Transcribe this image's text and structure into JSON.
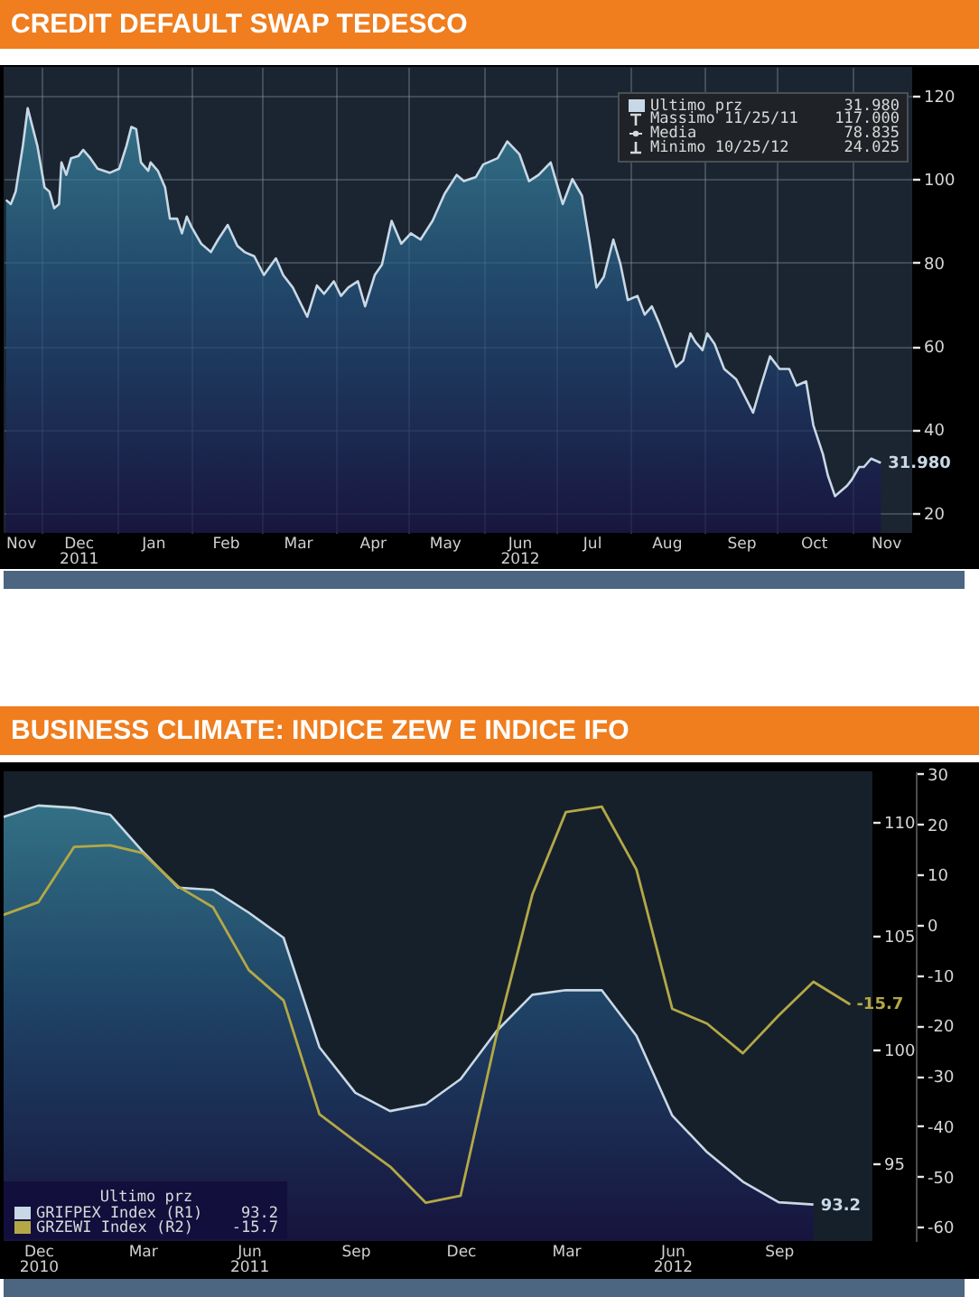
{
  "chart_data": [
    {
      "type": "area",
      "title": "CREDIT DEFAULT SWAP TEDESCO",
      "x": [
        "2011-11-16",
        "2011-11-18",
        "2011-11-20",
        "2011-11-23",
        "2011-11-25",
        "2011-11-29",
        "2011-12-02",
        "2011-12-04",
        "2011-12-06",
        "2011-12-08",
        "2011-12-09",
        "2011-12-11",
        "2011-12-13",
        "2011-12-16",
        "2011-12-18",
        "2011-12-21",
        "2011-12-24",
        "2011-12-29",
        "2012-01-02",
        "2012-01-05",
        "2012-01-07",
        "2012-01-09",
        "2012-01-11",
        "2012-01-14",
        "2012-01-15",
        "2012-01-18",
        "2012-01-21",
        "2012-01-23",
        "2012-01-26",
        "2012-01-28",
        "2012-01-30",
        "2012-02-01",
        "2012-02-05",
        "2012-02-09",
        "2012-02-12",
        "2012-02-16",
        "2012-02-20",
        "2012-02-23",
        "2012-02-27",
        "2012-03-02",
        "2012-03-07",
        "2012-03-10",
        "2012-03-14",
        "2012-03-20",
        "2012-03-24",
        "2012-03-27",
        "2012-03-31",
        "2012-04-03",
        "2012-04-06",
        "2012-04-10",
        "2012-04-13",
        "2012-04-17",
        "2012-04-20",
        "2012-04-24",
        "2012-04-28",
        "2012-05-02",
        "2012-05-06",
        "2012-05-11",
        "2012-05-16",
        "2012-05-21",
        "2012-05-24",
        "2012-05-29",
        "2012-06-01",
        "2012-06-07",
        "2012-06-11",
        "2012-06-16",
        "2012-06-20",
        "2012-06-24",
        "2012-06-29",
        "2012-07-04",
        "2012-07-08",
        "2012-07-12",
        "2012-07-15",
        "2012-07-18",
        "2012-07-21",
        "2012-07-25",
        "2012-07-28",
        "2012-07-31",
        "2012-08-04",
        "2012-08-07",
        "2012-08-10",
        "2012-08-13",
        "2012-08-16",
        "2012-08-20",
        "2012-08-23",
        "2012-08-26",
        "2012-08-28",
        "2012-08-31",
        "2012-09-02",
        "2012-09-05",
        "2012-09-09",
        "2012-09-14",
        "2012-09-21",
        "2012-09-24",
        "2012-09-28",
        "2012-10-02",
        "2012-10-06",
        "2012-10-09",
        "2012-10-13",
        "2012-10-16",
        "2012-10-20",
        "2012-10-22",
        "2012-10-25",
        "2012-10-30",
        "2012-11-01",
        "2012-11-04",
        "2012-11-06",
        "2012-11-09",
        "2012-11-13"
      ],
      "series": [
        {
          "name": "Ultimo prz",
          "color": "#c8d8e6",
          "values": [
            95,
            94,
            97,
            108,
            117,
            108,
            98,
            97,
            93,
            94,
            104,
            101,
            105,
            105.5,
            107,
            105,
            102.5,
            101.5,
            102.5,
            108,
            112.5,
            112,
            104,
            102,
            104,
            102,
            98,
            90.5,
            90.5,
            87,
            91,
            88.5,
            84.5,
            82.5,
            85.5,
            89,
            84,
            82.5,
            81.5,
            77,
            81,
            77,
            74,
            67,
            74.5,
            72.5,
            75.5,
            72,
            74,
            75.5,
            69.5,
            77,
            79.5,
            90,
            84.5,
            87,
            85.5,
            90,
            96.5,
            101,
            99.5,
            100.5,
            103.5,
            105,
            109,
            106,
            99.5,
            101,
            104,
            94,
            100,
            96,
            85.5,
            74,
            76.5,
            85.5,
            79.5,
            71,
            72,
            67.5,
            69.5,
            65.5,
            61,
            55,
            56.5,
            63,
            61,
            59,
            63,
            60.5,
            54.5,
            52,
            44,
            50,
            57.5,
            54.5,
            54.5,
            50.5,
            51.5,
            41,
            34,
            29,
            24,
            26.5,
            28,
            31,
            31,
            33,
            31.98
          ],
          "value_labels": [
            null,
            null,
            null,
            null,
            null,
            null,
            null,
            null,
            null,
            null,
            null,
            null,
            null,
            null,
            null,
            null,
            null,
            null,
            null,
            null,
            null,
            null,
            null,
            null,
            null,
            null,
            null,
            null,
            null,
            null,
            null,
            null,
            null,
            null,
            null,
            null,
            null,
            null,
            null,
            null,
            null,
            null,
            null,
            null,
            null,
            null,
            null,
            null,
            null,
            null,
            null,
            null,
            null,
            null,
            null,
            null,
            null,
            null,
            null,
            null,
            null,
            null,
            null,
            null,
            null,
            null,
            null,
            null,
            null,
            null,
            null,
            null,
            null,
            null,
            null,
            null,
            null,
            null,
            null,
            null,
            null,
            null,
            null,
            null,
            null,
            null,
            null,
            null,
            null,
            null,
            null,
            null,
            null,
            null,
            null,
            null,
            null,
            null,
            null,
            null,
            null,
            null,
            null,
            null,
            null,
            null,
            null,
            null,
            "31.980"
          ]
        }
      ],
      "xlim": [
        "2011-11-15",
        "2012-11-26"
      ],
      "xticks": [
        {
          "value": "2011-11-22",
          "label": "Nov"
        },
        {
          "value": "2011-12-16",
          "label": "Dec\n2011"
        },
        {
          "value": "2012-01-16",
          "label": "Jan"
        },
        {
          "value": "2012-02-15",
          "label": "Feb"
        },
        {
          "value": "2012-03-16",
          "label": "Mar"
        },
        {
          "value": "2012-04-16",
          "label": "Apr"
        },
        {
          "value": "2012-05-16",
          "label": "May"
        },
        {
          "value": "2012-06-16",
          "label": "Jun\n2012"
        },
        {
          "value": "2012-07-16",
          "label": "Jul"
        },
        {
          "value": "2012-08-16",
          "label": "Aug"
        },
        {
          "value": "2012-09-16",
          "label": "Sep"
        },
        {
          "value": "2012-10-16",
          "label": "Oct"
        },
        {
          "value": "2012-11-15",
          "label": "Nov"
        },
        {
          "value": "2011-12-01",
          "label": null
        },
        {
          "value": "2012-01-01",
          "label": null
        },
        {
          "value": "2012-02-01",
          "label": null
        },
        {
          "value": "2012-03-01",
          "label": null
        },
        {
          "value": "2012-04-01",
          "label": null
        },
        {
          "value": "2012-05-01",
          "label": null
        },
        {
          "value": "2012-06-01",
          "label": null
        },
        {
          "value": "2012-07-01",
          "label": null
        },
        {
          "value": "2012-08-01",
          "label": null
        },
        {
          "value": "2012-09-01",
          "label": null
        },
        {
          "value": "2012-10-01",
          "label": null
        },
        {
          "value": "2012-11-01",
          "label": null
        }
      ],
      "ylim": [
        15.2,
        126.9
      ],
      "yticks": [
        20,
        40,
        60,
        80,
        100,
        120
      ],
      "grid": true,
      "legend": "top right",
      "annotations": [
        "31.980",
        "Massimo 11/25/11",
        "117.000",
        "Media",
        "78.835",
        "Minimo 10/25/12",
        "24.025"
      ]
    },
    {
      "type": "area",
      "title": "BUSINESS CLIMATE: INDICE ZEW E INDICE IFO",
      "x": [
        "2010-11",
        "2010-12",
        "2011-01",
        "2011-02",
        "2011-03",
        "2011-04",
        "2011-05",
        "2011-06",
        "2011-07",
        "2011-08",
        "2011-09",
        "2011-10",
        "2011-11",
        "2011-12",
        "2012-01",
        "2012-02",
        "2012-03",
        "2012-04",
        "2012-05",
        "2012-06",
        "2012-07",
        "2012-08",
        "2012-09",
        "2012-10",
        "2012-11"
      ],
      "series": [
        {
          "name": "GRIFPEX Index (R1)",
          "color": "#c8d8e6",
          "values": [
            110.2,
            110.7,
            110.6,
            110.3,
            108.7,
            107.1,
            107,
            106,
            104.9,
            100.1,
            98.1,
            97.3,
            97.6,
            98.7,
            100.8,
            102.4,
            102.6,
            102.6,
            100.6,
            97.1,
            95.5,
            94.2,
            93.3,
            93.2,
            null
          ],
          "value_labels": [
            null,
            null,
            null,
            null,
            null,
            null,
            null,
            null,
            null,
            null,
            null,
            null,
            null,
            null,
            null,
            null,
            null,
            null,
            null,
            null,
            null,
            null,
            null,
            "93.2",
            null
          ]
        },
        {
          "name": "GRZEWI Index (R2)",
          "type": "line",
          "axis": "y2",
          "color": "#b4a846",
          "values": [
            2,
            4.5,
            15.5,
            15.8,
            14.3,
            7.6,
            3.5,
            -9,
            -15,
            -37.6,
            -43,
            -48,
            -55.2,
            -53.8,
            -22,
            6,
            22.4,
            23.5,
            11,
            -16.7,
            -19.6,
            -25.5,
            -18,
            -11.3,
            -15.7
          ],
          "value_labels": [
            null,
            null,
            null,
            null,
            null,
            null,
            null,
            null,
            null,
            null,
            null,
            null,
            null,
            null,
            null,
            null,
            null,
            null,
            null,
            null,
            null,
            null,
            null,
            null,
            "-15.7"
          ]
        }
      ],
      "xlim": [
        "2010-11-01",
        "2012-11-21"
      ],
      "xticks": [
        {
          "value": "2010-12",
          "label": "Dec\n2010"
        },
        {
          "value": "2011-03",
          "label": "Mar"
        },
        {
          "value": "2011-06",
          "label": "Jun\n2011"
        },
        {
          "value": "2011-09",
          "label": "Sep"
        },
        {
          "value": "2011-12",
          "label": "Dec"
        },
        {
          "value": "2012-03",
          "label": "Mar"
        },
        {
          "value": "2012-06",
          "label": "Jun\n2012"
        },
        {
          "value": "2012-09",
          "label": "Sep"
        }
      ],
      "ylim": [
        91.6,
        112.2
      ],
      "yticks": [
        95,
        100,
        105,
        110
      ],
      "y2lim": [
        -62.8,
        30.5
      ],
      "y2ticks": [
        -60,
        -50,
        -40,
        -30,
        -20,
        -10,
        0,
        10,
        20,
        30
      ],
      "legend": "bottom left",
      "legend_title": "Ultimo prz",
      "annotations": [
        "93.2",
        "-15.7"
      ]
    }
  ]
}
